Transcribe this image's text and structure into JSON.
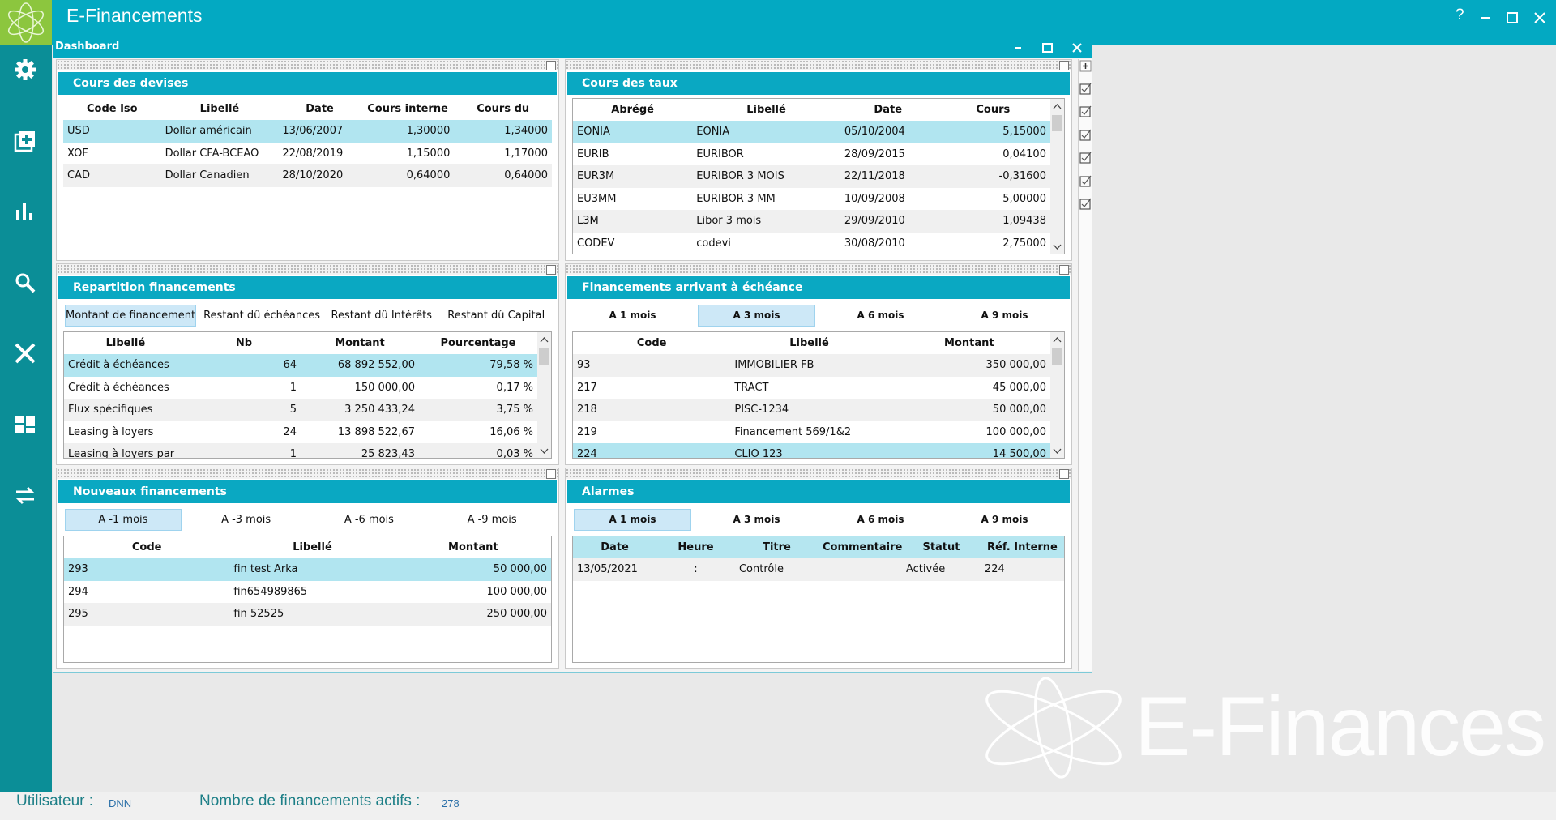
{
  "app": {
    "title": "E-Financements",
    "help": "?"
  },
  "window": {
    "title": "Dashboard"
  },
  "panels": [
    {
      "title": "Cours des devises",
      "columns": [
        "Code Iso",
        "Libellé",
        "Date",
        "Cours interne",
        "Cours du"
      ],
      "rows": [
        [
          "USD",
          "Dollar américain",
          "13/06/2007",
          "1,30000",
          "1,34000"
        ],
        [
          "XOF",
          "Dollar CFA-BCEAO",
          "22/08/2019",
          "1,15000",
          "1,17000"
        ],
        [
          "CAD",
          "Dollar Canadien",
          "28/10/2020",
          "0,64000",
          "0,64000"
        ]
      ],
      "selected_row": 0
    },
    {
      "title": "Cours des taux",
      "columns": [
        "Abrégé",
        "Libellé",
        "Date",
        "Cours"
      ],
      "rows": [
        [
          "EONIA",
          "EONIA",
          "05/10/2004",
          "5,15000"
        ],
        [
          "EURIB",
          "EURIBOR",
          "28/09/2015",
          "0,04100"
        ],
        [
          "EUR3M",
          "EURIBOR 3 MOIS",
          "22/11/2018",
          "-0,31600"
        ],
        [
          "EU3MM",
          "EURIBOR 3 MM",
          "10/09/2008",
          "5,00000"
        ],
        [
          "L3M",
          "Libor 3 mois",
          "29/09/2010",
          "1,09438"
        ],
        [
          "CODEV",
          "codevi",
          "30/08/2010",
          "2,75000"
        ]
      ],
      "selected_row": 0
    },
    {
      "title": "Repartition financements",
      "tabs": [
        "Montant de financement",
        "Restant dû échéances",
        "Restant dû Intérêts",
        "Restant dû Capital"
      ],
      "active_tab": 0,
      "columns": [
        "Libellé",
        "Nb",
        "Montant",
        "Pourcentage"
      ],
      "rows": [
        [
          "Crédit à échéances",
          64,
          "68 892 552,00",
          "79,58 %"
        ],
        [
          "Crédit à échéances",
          1,
          "150 000,00",
          "0,17 %"
        ],
        [
          "Flux spécifiques",
          5,
          "3 250 433,24",
          "3,75 %"
        ],
        [
          "Leasing à loyers",
          24,
          "13 898 522,67",
          "16,06 %"
        ],
        [
          "Leasing à loyers par",
          1,
          "25 823,43",
          "0,03 %"
        ]
      ],
      "selected_row": 0
    },
    {
      "title": "Financements arrivant à échéance",
      "tabs": [
        "A 1 mois",
        "A 3 mois",
        "A 6 mois",
        "A 9 mois"
      ],
      "active_tab": 1,
      "columns": [
        "Code",
        "Libellé",
        "Montant"
      ],
      "rows": [
        [
          "93",
          "IMMOBILIER FB",
          "350 000,00"
        ],
        [
          "217",
          "TRACT",
          "45 000,00"
        ],
        [
          "218",
          "PISC-1234",
          "50 000,00"
        ],
        [
          "219",
          "Financement 569/1&2",
          "100 000,00"
        ],
        [
          "224",
          "CLIO 123",
          "14 500,00"
        ]
      ],
      "selected_row": 4
    },
    {
      "title": "Nouveaux financements",
      "tabs": [
        "A -1 mois",
        "A -3 mois",
        "A -6 mois",
        "A -9 mois"
      ],
      "active_tab": 0,
      "columns": [
        "Code",
        "Libellé",
        "Montant"
      ],
      "rows": [
        [
          "293",
          "fin test Arka",
          "50 000,00"
        ],
        [
          "294",
          "fin654989865",
          "100 000,00"
        ],
        [
          "295",
          "fin 52525",
          "250 000,00"
        ]
      ],
      "selected_row": 0
    },
    {
      "title": "Alarmes",
      "tabs": [
        "A 1 mois",
        "A 3 mois",
        "A 6 mois",
        "A 9 mois"
      ],
      "active_tab": 0,
      "columns": [
        "Date",
        "Heure",
        "Titre",
        "Commentaire",
        "Statut",
        "Réf. Interne"
      ],
      "rows": [
        [
          "13/05/2021",
          ":",
          "Contrôle",
          null,
          "Activée",
          "224"
        ]
      ],
      "selected_row": null
    }
  ],
  "status": {
    "user_label": "Utilisateur :",
    "user": "DNN",
    "count_label": "Nombre de financements actifs :",
    "count": 278
  },
  "watermark": "E-Finances"
}
